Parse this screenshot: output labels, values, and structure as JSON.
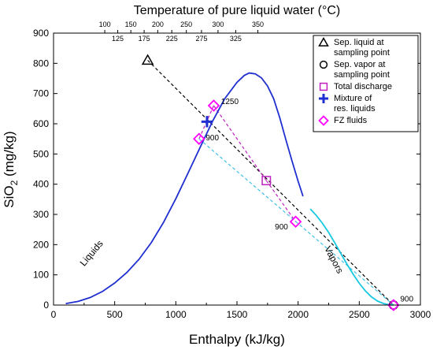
{
  "chart_data": {
    "type": "scatter",
    "title": "Temperature of pure liquid water (°C)",
    "xlabel": "Enthalpy (kJ/kg)",
    "ylabel_main": "SiO",
    "ylabel_sub": "2",
    "ylabel_unit": " (mg/kg)",
    "xlim": [
      0,
      3000
    ],
    "ylim": [
      0,
      900
    ],
    "x_ticks": [
      0,
      500,
      1000,
      1500,
      2000,
      2500,
      3000
    ],
    "y_ticks": [
      0,
      100,
      200,
      300,
      400,
      500,
      600,
      700,
      800,
      900
    ],
    "temperature_ticks": [
      {
        "label": "100",
        "enthalpy": 419,
        "row": "upper"
      },
      {
        "label": "125",
        "enthalpy": 525,
        "row": "lower"
      },
      {
        "label": "150",
        "enthalpy": 632,
        "row": "upper"
      },
      {
        "label": "175",
        "enthalpy": 741,
        "row": "lower"
      },
      {
        "label": "200",
        "enthalpy": 852,
        "row": "upper"
      },
      {
        "label": "225",
        "enthalpy": 967,
        "row": "lower"
      },
      {
        "label": "250",
        "enthalpy": 1086,
        "row": "upper"
      },
      {
        "label": "275",
        "enthalpy": 1210,
        "row": "lower"
      },
      {
        "label": "300",
        "enthalpy": 1345,
        "row": "upper"
      },
      {
        "label": "325",
        "enthalpy": 1490,
        "row": "lower"
      },
      {
        "label": "350",
        "enthalpy": 1671,
        "row": "upper"
      }
    ],
    "curves": [
      {
        "name": "Liquids",
        "color": "#1f2fd0",
        "x": [
          100,
          200,
          300,
          400,
          500,
          600,
          700,
          800,
          900,
          1000,
          1100,
          1200,
          1300,
          1400,
          1500,
          1560,
          1600,
          1650,
          1700,
          1750,
          1800,
          1850,
          1900,
          1950,
          2000,
          2040
        ],
        "y": [
          5,
          12,
          25,
          45,
          73,
          108,
          152,
          207,
          274,
          352,
          437,
          523,
          608,
          683,
          737,
          760,
          768,
          765,
          752,
          725,
          683,
          620,
          547,
          477,
          410,
          360
        ]
      },
      {
        "name": "Vapors",
        "color": "#18c8e0",
        "x": [
          2100,
          2150,
          2200,
          2250,
          2300,
          2350,
          2400,
          2450,
          2500,
          2550,
          2600,
          2650,
          2700,
          2750,
          2780
        ],
        "y": [
          318,
          296,
          270,
          240,
          206,
          170,
          135,
          102,
          72,
          47,
          27,
          13,
          5,
          1,
          0
        ]
      }
    ],
    "lines": [
      {
        "color": "#000000",
        "x": [
          770,
          2780
        ],
        "y": [
          810,
          0
        ]
      },
      {
        "color": "#c020c0",
        "x": [
          1310,
          1740
        ],
        "y": [
          660,
          412
        ]
      },
      {
        "color": "#c020c0",
        "x": [
          1740,
          1980
        ],
        "y": [
          412,
          276
        ]
      },
      {
        "color": "#c020c0",
        "x": [
          1310,
          1190
        ],
        "y": [
          660,
          550
        ]
      },
      {
        "color": "#40c0e8",
        "x": [
          1190,
          2780
        ],
        "y": [
          550,
          0
        ]
      }
    ],
    "points": [
      {
        "series": "Sep. liquid at sampling point",
        "marker": "triangle",
        "color": "#000000",
        "x": 770,
        "y": 810
      },
      {
        "series": "Sep. vapor at sampling point",
        "marker": "circle",
        "color": "#000000",
        "x": 2780,
        "y": 0
      },
      {
        "series": "Total discharge",
        "marker": "square",
        "color": "#c020c0",
        "x": 1740,
        "y": 412
      },
      {
        "series": "Mixture of res. liquids",
        "marker": "plus",
        "color": "#1f2fd0",
        "x": 1255,
        "y": 607
      },
      {
        "series": "FZ fluids",
        "marker": "diamond",
        "color": "#ff00ff",
        "x": 1310,
        "y": 660
      },
      {
        "series": "FZ fluids",
        "marker": "diamond",
        "color": "#ff00ff",
        "x": 1190,
        "y": 550
      },
      {
        "series": "FZ fluids",
        "marker": "diamond",
        "color": "#ff00ff",
        "x": 1980,
        "y": 276
      },
      {
        "series": "FZ fluids",
        "marker": "diamond",
        "color": "#ff00ff",
        "x": 2780,
        "y": 0
      }
    ],
    "annotations": [
      {
        "text": "1250",
        "x": 1370,
        "y": 665
      },
      {
        "text": "900",
        "x": 1245,
        "y": 545
      },
      {
        "text": "900",
        "x": 1810,
        "y": 250
      },
      {
        "text": "900",
        "x": 2835,
        "y": 12
      }
    ],
    "curve_labels": [
      {
        "text": "Liquids",
        "x": 330,
        "y": 165,
        "angle": -50
      },
      {
        "text": "Vapors",
        "x": 2270,
        "y": 145,
        "angle": 62
      }
    ],
    "legend": {
      "placement": "top-right",
      "items": [
        {
          "marker": "triangle",
          "color": "#000000",
          "lines": [
            "Sep. liquid at",
            "sampling point"
          ]
        },
        {
          "marker": "circle",
          "color": "#000000",
          "lines": [
            "Sep. vapor at",
            "sampling point"
          ]
        },
        {
          "marker": "square",
          "color": "#c020c0",
          "lines": [
            "Total discharge"
          ]
        },
        {
          "marker": "plus",
          "color": "#1f2fd0",
          "lines": [
            "Mixture of",
            "res. liquids"
          ]
        },
        {
          "marker": "diamond",
          "color": "#ff00ff",
          "lines": [
            "FZ fluids"
          ]
        }
      ]
    }
  }
}
